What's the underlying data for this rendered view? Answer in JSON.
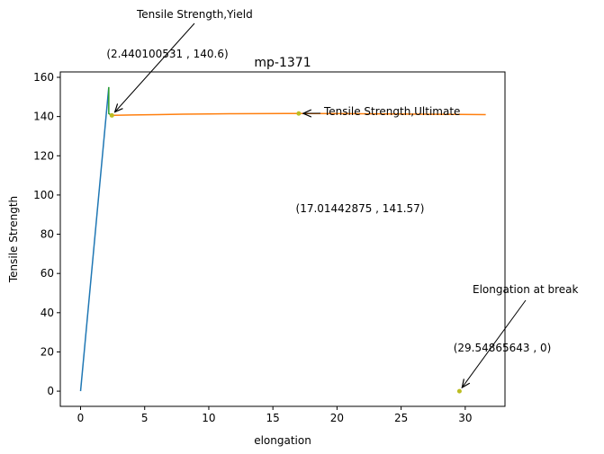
{
  "chart_data": {
    "type": "line",
    "title": "mp-1371",
    "xlabel": "elongation",
    "ylabel": "Tensile Strength",
    "xlim": [
      -1.58,
      33.1
    ],
    "ylim": [
      -7.75,
      162.75
    ],
    "xticks": [
      0,
      5,
      10,
      15,
      20,
      25,
      30
    ],
    "yticks": [
      0,
      20,
      40,
      60,
      80,
      100,
      120,
      140,
      160
    ],
    "grid": false,
    "legend": "none",
    "series": [
      {
        "color": "#1f77b4",
        "x": [
          0,
          2.2
        ],
        "y": [
          0,
          155
        ]
      },
      {
        "color": "#2ca02c",
        "x": [
          2.2,
          2.2,
          2.44
        ],
        "y": [
          155,
          141.5,
          140.6
        ]
      },
      {
        "color": "#ff7f0e",
        "x": [
          2.44,
          4,
          6,
          8,
          10,
          12,
          14,
          16,
          17.01,
          20,
          24,
          28,
          31.6
        ],
        "y": [
          140.6,
          140.8,
          141.0,
          141.2,
          141.35,
          141.45,
          141.5,
          141.55,
          141.57,
          141.5,
          141.35,
          141.15,
          141.0
        ]
      }
    ],
    "points": [
      {
        "x": 2.440100531,
        "y": 140.6,
        "color": "#bcbd22"
      },
      {
        "x": 17.01442875,
        "y": 141.57,
        "color": "#bcbd22"
      },
      {
        "x": 29.54865643,
        "y": 0,
        "color": "#bcbd22"
      }
    ],
    "annotations": [
      {
        "text": "Tensile Strength,Yield",
        "x": 2.440100531,
        "y": 140.6
      },
      {
        "text": "Tensile Strength,Ultimate",
        "x": 17.01442875,
        "y": 141.57
      },
      {
        "text": "Elongation at break",
        "x": 29.54865643,
        "y": 0
      }
    ],
    "value_labels": [
      {
        "text": "(2.440100531 , 140.6)",
        "x": 2.440100531,
        "y": 140.6
      },
      {
        "text": "(17.01442875 , 141.57)",
        "x": 17.01442875,
        "y": 141.57
      },
      {
        "text": "(29.54865643 , 0)",
        "x": 29.54865643,
        "y": 0
      }
    ]
  }
}
